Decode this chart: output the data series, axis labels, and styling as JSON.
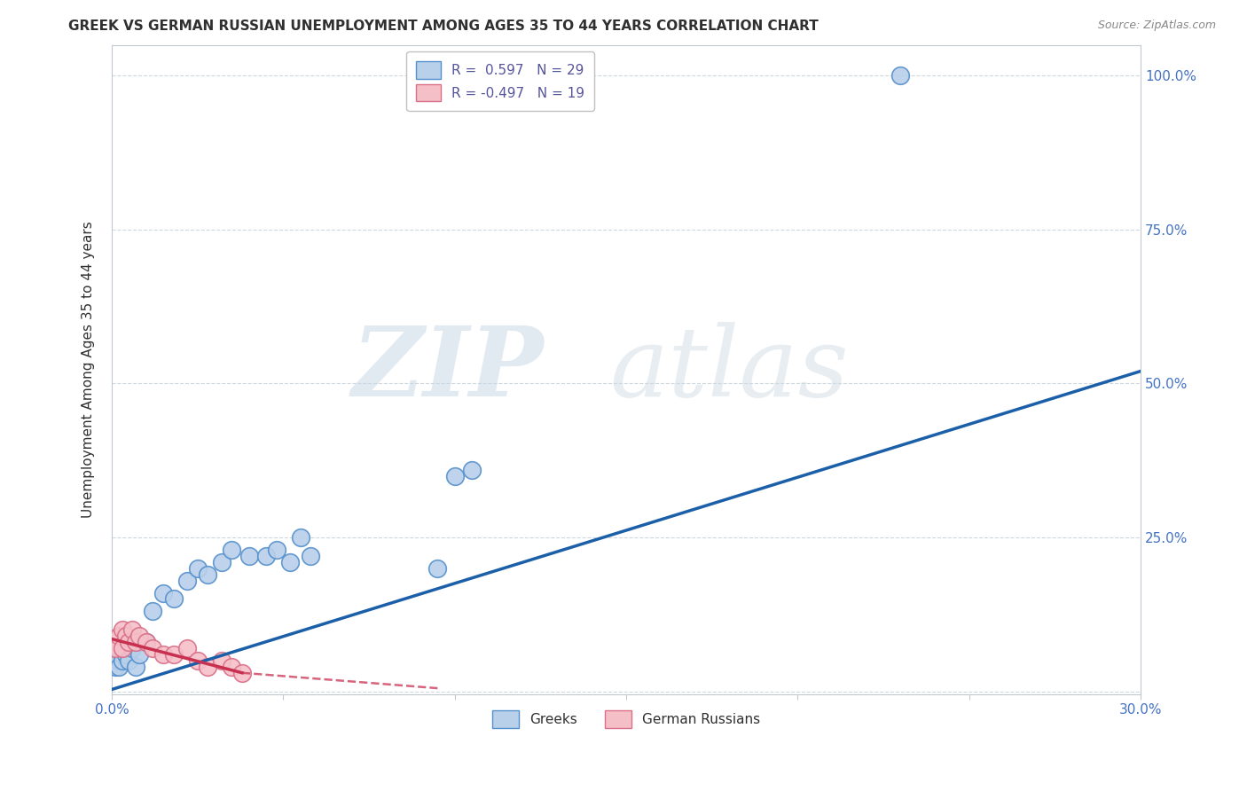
{
  "title": "GREEK VS GERMAN RUSSIAN UNEMPLOYMENT AMONG AGES 35 TO 44 YEARS CORRELATION CHART",
  "source": "Source: ZipAtlas.com",
  "xlabel": "",
  "ylabel": "Unemployment Among Ages 35 to 44 years",
  "xlim": [
    0.0,
    0.3
  ],
  "ylim": [
    -0.005,
    1.05
  ],
  "xticks": [
    0.0,
    0.05,
    0.1,
    0.15,
    0.2,
    0.25,
    0.3
  ],
  "yticks": [
    0.0,
    0.25,
    0.5,
    0.75,
    1.0
  ],
  "ytick_labels": [
    "",
    "25.0%",
    "50.0%",
    "75.0%",
    "100.0%"
  ],
  "xtick_labels": [
    "0.0%",
    "",
    "",
    "",
    "",
    "",
    "30.0%"
  ],
  "greek_x": [
    0.001,
    0.002,
    0.002,
    0.003,
    0.003,
    0.004,
    0.005,
    0.006,
    0.007,
    0.008,
    0.01,
    0.012,
    0.015,
    0.018,
    0.022,
    0.025,
    0.028,
    0.032,
    0.035,
    0.04,
    0.045,
    0.048,
    0.052,
    0.055,
    0.058,
    0.095,
    0.1,
    0.105,
    0.23
  ],
  "greek_y": [
    0.04,
    0.05,
    0.04,
    0.06,
    0.05,
    0.06,
    0.05,
    0.07,
    0.04,
    0.06,
    0.08,
    0.13,
    0.16,
    0.15,
    0.18,
    0.2,
    0.19,
    0.21,
    0.23,
    0.22,
    0.22,
    0.23,
    0.21,
    0.25,
    0.22,
    0.2,
    0.35,
    0.36,
    1.0
  ],
  "gr_x": [
    0.001,
    0.002,
    0.003,
    0.003,
    0.004,
    0.005,
    0.006,
    0.007,
    0.008,
    0.01,
    0.012,
    0.015,
    0.018,
    0.022,
    0.025,
    0.028,
    0.032,
    0.035,
    0.038
  ],
  "gr_y": [
    0.07,
    0.09,
    0.07,
    0.1,
    0.09,
    0.08,
    0.1,
    0.08,
    0.09,
    0.08,
    0.07,
    0.06,
    0.06,
    0.07,
    0.05,
    0.04,
    0.05,
    0.04,
    0.03
  ],
  "greek_line_x0": 0.0,
  "greek_line_x1": 0.3,
  "greek_line_y0": 0.003,
  "greek_line_y1": 0.52,
  "gr_line_x0": 0.0,
  "gr_line_x1": 0.038,
  "gr_line_y0": 0.085,
  "gr_line_y1": 0.03,
  "gr_line_dashed_x0": 0.038,
  "gr_line_dashed_x1": 0.095,
  "gr_line_dashed_y0": 0.03,
  "gr_line_dashed_y1": 0.005,
  "greek_R": 0.597,
  "greek_N": 29,
  "gr_R": -0.497,
  "gr_N": 19,
  "greek_color": "#b8d0ea",
  "greek_edge_color": "#5590cc",
  "gr_color": "#f5bfc8",
  "gr_edge_color": "#d97088",
  "greek_line_color": "#1a5fa8",
  "gr_line_color": "#c83050",
  "watermark_color": "#c8d8e8",
  "watermark_zip_color": "#b0c0d8",
  "background_color": "#ffffff",
  "grid_color": "#c8d4dc",
  "title_color": "#303030",
  "source_color": "#888888",
  "right_label_color": "#4472c4",
  "legend_R_color": "#555599"
}
